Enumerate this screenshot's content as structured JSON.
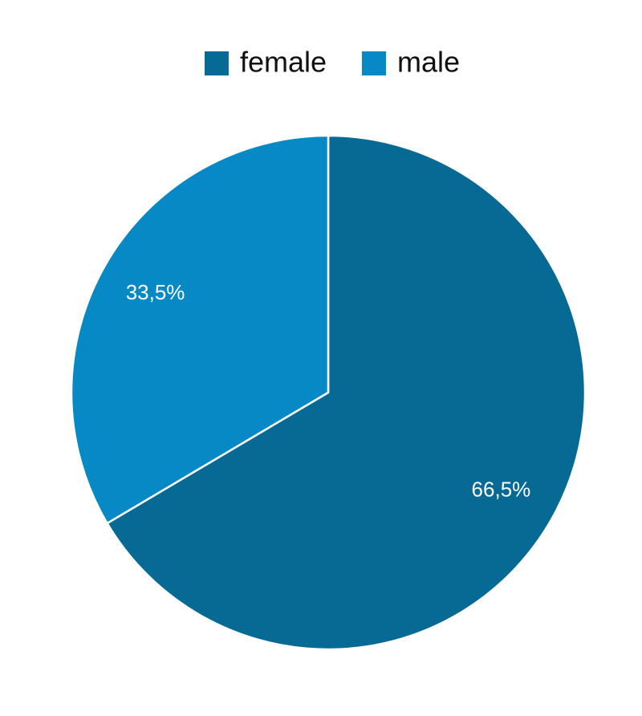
{
  "chart_data": {
    "type": "pie",
    "categories": [
      "female",
      "male"
    ],
    "values": [
      66.5,
      33.5
    ],
    "value_labels": [
      "66,5%",
      "33,5%"
    ],
    "colors": [
      "#066a94",
      "#0689c4"
    ],
    "legend": "top"
  }
}
